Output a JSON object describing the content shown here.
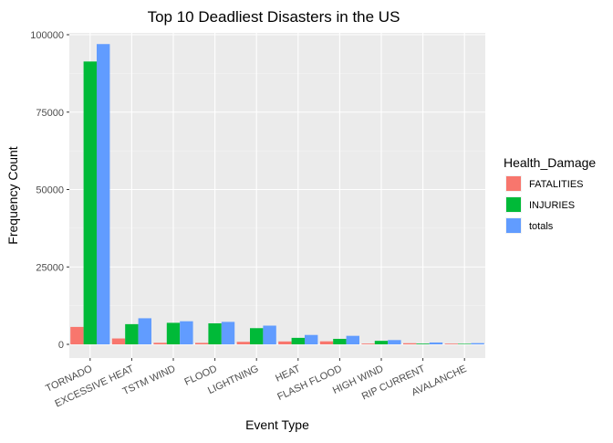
{
  "chart_data": {
    "type": "bar",
    "title": "Top 10 Deadliest Disasters in the US",
    "xlabel": "Event Type",
    "ylabel": "Frequency Count",
    "ylim": [
      0,
      100000
    ],
    "yticks": [
      0,
      25000,
      50000,
      75000,
      100000
    ],
    "ytick_labels": [
      "0",
      "25000",
      "50000",
      "75000",
      "100000"
    ],
    "grid": true,
    "legend": {
      "title": "Health_Damage",
      "position": "right"
    },
    "categories": [
      "TORNADO",
      "EXCESSIVE HEAT",
      "TSTM WIND",
      "FLOOD",
      "LIGHTNING",
      "HEAT",
      "FLASH FLOOD",
      "HIGH WIND",
      "RIP CURRENT",
      "AVALANCHE"
    ],
    "series": [
      {
        "name": "FATALITIES",
        "color": "#F8766D",
        "values": [
          5633,
          1903,
          504,
          470,
          816,
          937,
          978,
          248,
          368,
          224
        ]
      },
      {
        "name": "INJURIES",
        "color": "#00BA38",
        "values": [
          91346,
          6525,
          6957,
          6789,
          5230,
          2100,
          1777,
          1137,
          232,
          170
        ]
      },
      {
        "name": "totals",
        "color": "#619CFF",
        "values": [
          96979,
          8428,
          7461,
          7259,
          6046,
          3037,
          2755,
          1385,
          600,
          394
        ]
      }
    ]
  }
}
